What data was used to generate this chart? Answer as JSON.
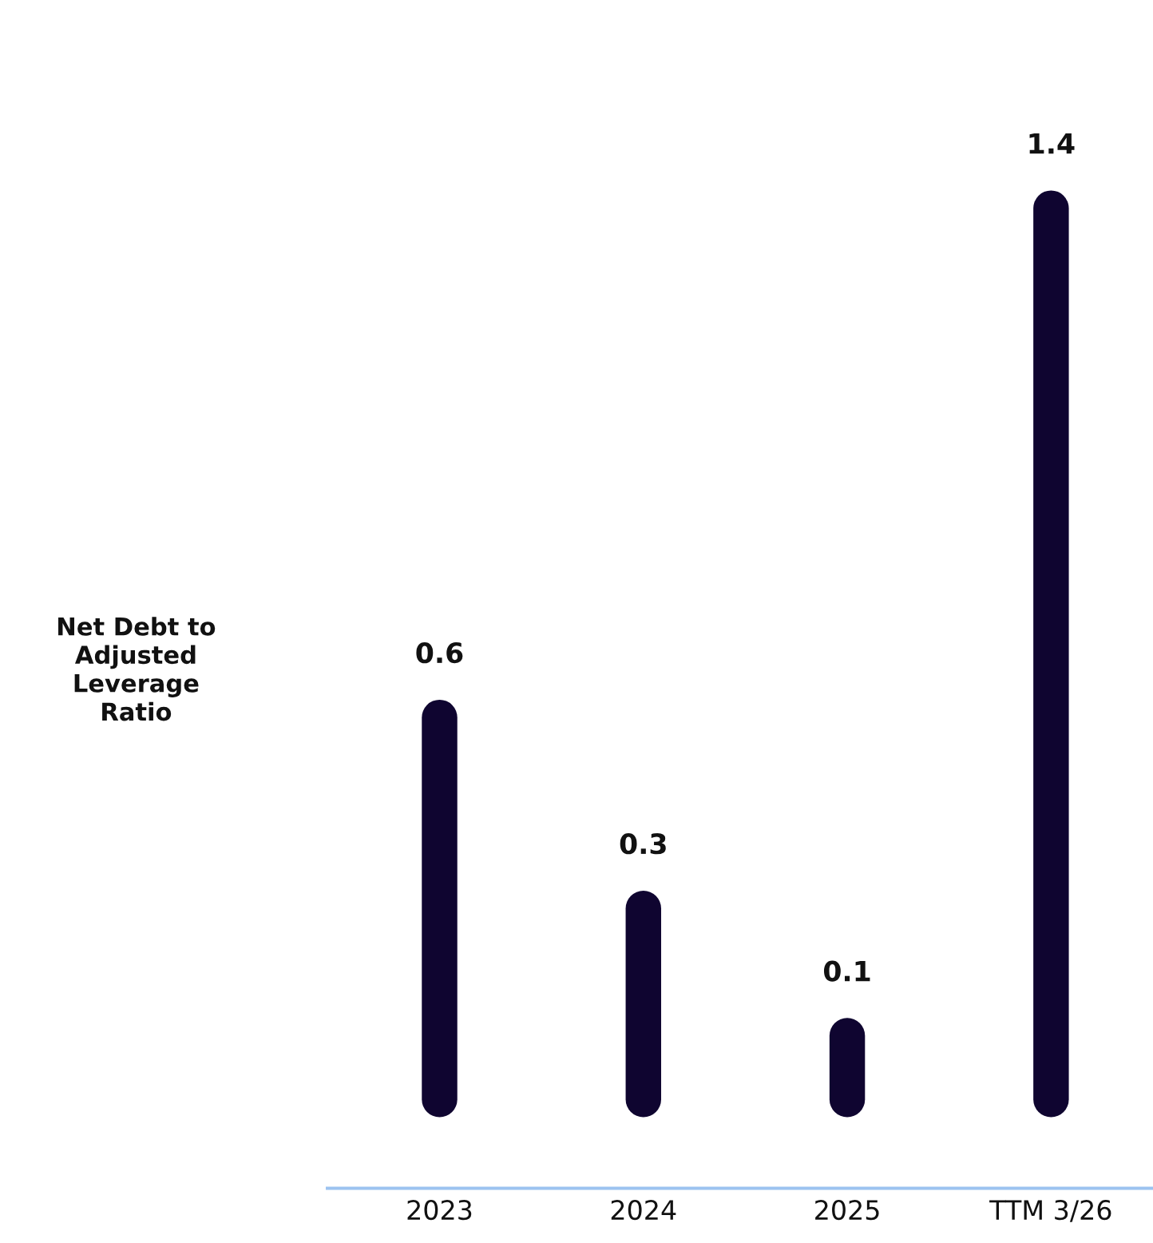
{
  "chart_data": {
    "type": "bar",
    "annotations": [
      "Net Debt to\nAdjusted\nLeverage\nRatio"
    ],
    "categories": [
      "2023",
      "2024",
      "2025",
      "TTM 3/26"
    ],
    "values": [
      0.6,
      0.3,
      0.1,
      1.4
    ],
    "color": "#0f0530",
    "data_labels": true,
    "grid": false,
    "legend": false
  }
}
